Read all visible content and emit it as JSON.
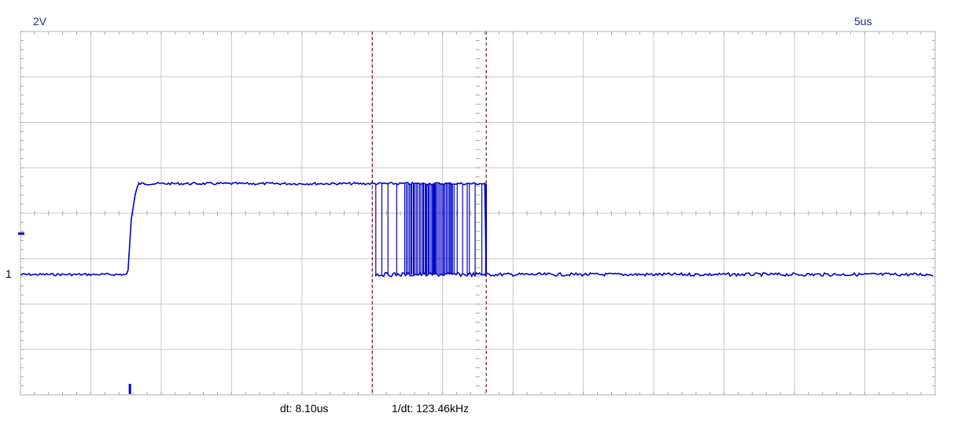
{
  "scope": {
    "volts_per_div": "2V",
    "time_per_div": "5us",
    "channel_marker": "1",
    "dt": "dt: 8.10us",
    "inv_dt": "1/dt: 123.46kHz"
  },
  "colors": {
    "trace": "#0000cc",
    "grid": "#c8c8c8",
    "center_axis": "#a8a8a8",
    "cursor": "#8b1a3a",
    "text": "#000000",
    "header_text": "#1a2a7a"
  },
  "chart_data": {
    "type": "line",
    "title": "",
    "xlabel": "",
    "ylabel": "",
    "x_divisions": 13,
    "y_divisions": 8,
    "x_unit_per_div_us": 5,
    "y_unit_per_div_v": 2,
    "xlim_div": [
      0,
      13
    ],
    "ylim_div": [
      -4,
      4
    ],
    "grid": true,
    "ground_marker_div": -0.45,
    "trigger_marker_time_div": 1.55,
    "cursors_time_div": [
      5.0,
      6.62
    ],
    "series": [
      {
        "levels_div": {
          "low": -1.35,
          "high": 0.65
        },
        "rise_time_div": [
          1.53,
          1.68
        ],
        "bounce_region_time_div": [
          5.05,
          6.62
        ],
        "fall_time_div": 6.62
      }
    ]
  }
}
